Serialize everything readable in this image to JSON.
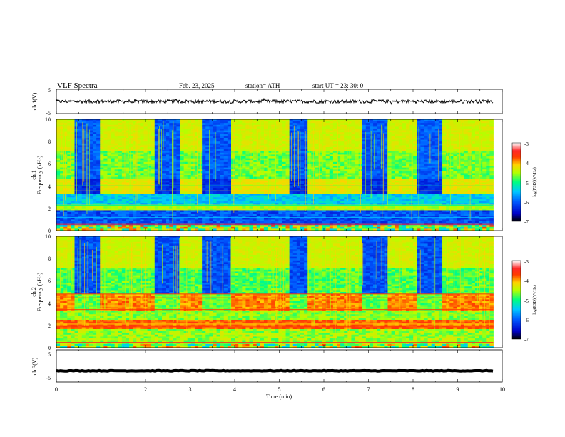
{
  "header": {
    "title": "VLF  Spectra",
    "date": "Feb. 23, 2025",
    "station": "station= ATH",
    "start": "start  UT  =   23: 30: 0"
  },
  "chart_data": [
    {
      "type": "line",
      "panel": "ch1-waveform",
      "ylabel": "ch.1(V)",
      "yticks": [
        "5",
        "-5"
      ],
      "ylim": [
        -5,
        5
      ],
      "xlim": [
        0,
        10
      ],
      "approx_level_V": 0
    },
    {
      "type": "heatmap",
      "panel": "ch1-spectrogram",
      "ylabel_line1": "ch.1",
      "ylabel_line2": "Frequency  (kHz)",
      "yticks": [
        "0",
        "2",
        "4",
        "6",
        "8",
        "10"
      ],
      "ylim": [
        0,
        10
      ],
      "xlim": [
        0,
        10
      ],
      "quiet_intervals_min": [
        [
          0.38,
          1.0
        ],
        [
          2.2,
          2.75
        ],
        [
          3.3,
          3.92
        ],
        [
          5.2,
          5.65
        ],
        [
          6.87,
          7.45
        ],
        [
          8.05,
          8.65
        ]
      ],
      "colorbar": {
        "label": "log(PSD)(V²/Hz)",
        "ticks": [
          "-3",
          "-4",
          "-5",
          "-6",
          "-7"
        ],
        "range": [
          -7,
          -3
        ]
      }
    },
    {
      "type": "heatmap",
      "panel": "ch2-spectrogram",
      "ylabel_line1": "ch.2",
      "ylabel_line2": "Frequency  (kHz)",
      "yticks": [
        "0",
        "2",
        "4",
        "6",
        "8",
        "10"
      ],
      "ylim": [
        0,
        10
      ],
      "xlim": [
        0,
        10
      ],
      "quiet_intervals_min": [
        [
          0.38,
          1.0
        ],
        [
          2.2,
          2.75
        ],
        [
          3.3,
          3.92
        ],
        [
          5.2,
          5.65
        ],
        [
          6.87,
          7.45
        ],
        [
          8.05,
          8.65
        ]
      ],
      "colorbar": {
        "label": "log(PSD)(V²/Hz)",
        "ticks": [
          "-3",
          "-4",
          "-5",
          "-6",
          "-7"
        ],
        "range": [
          -7,
          -3
        ]
      }
    },
    {
      "type": "line",
      "panel": "ch3-waveform",
      "ylabel": "ch.3(V)",
      "yticks": [
        "5",
        "-5"
      ],
      "ylim": [
        -5,
        5
      ],
      "xlim": [
        0,
        10
      ],
      "approx_level_V": -1.5
    }
  ],
  "xaxis": {
    "label": "Time  (min)",
    "ticks": [
      "0",
      "1",
      "2",
      "3",
      "4",
      "5",
      "6",
      "7",
      "8",
      "9",
      "10"
    ]
  },
  "colors": {
    "colormap": [
      "#000000",
      "#0000c8",
      "#005aff",
      "#00c8ff",
      "#00ff80",
      "#b4ff00",
      "#ffd200",
      "#ff3c00",
      "#ff2828",
      "#ffb4b4",
      "#ffffff"
    ]
  }
}
